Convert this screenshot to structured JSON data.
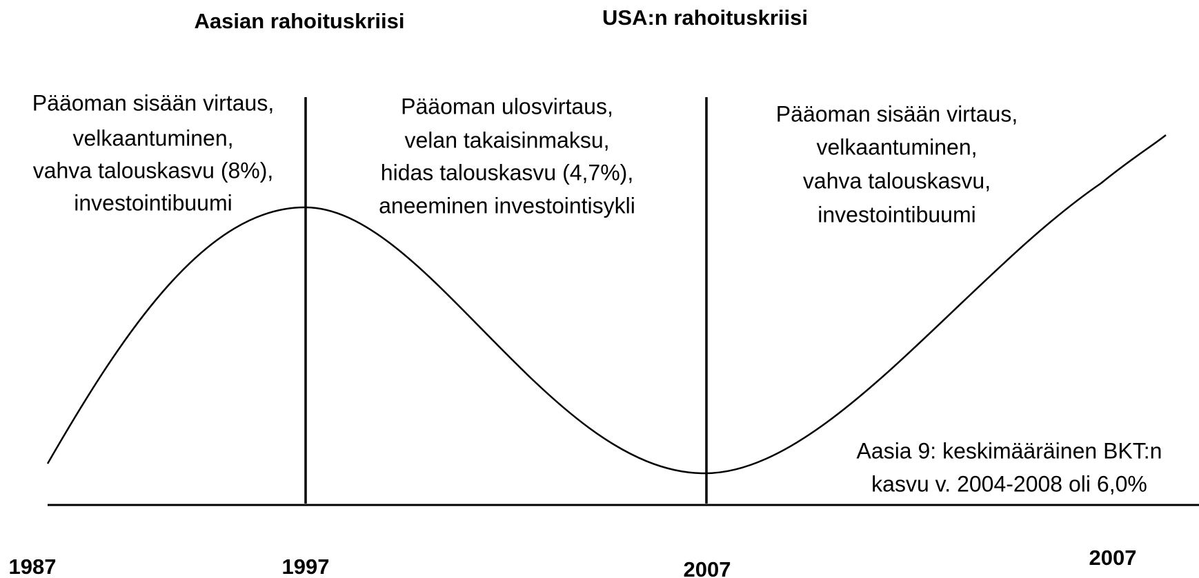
{
  "headings": [
    "Aasian rahoituskriisi",
    "USA:n rahoituskriisi"
  ],
  "phases": [
    {
      "lines": [
        "Pääoman sisään virtaus,",
        "velkaantuminen,",
        "vahva talouskasvu (8%),",
        "investointibuumi"
      ]
    },
    {
      "lines": [
        "Pääoman ulosvirtaus,",
        "velan takaisinmaksu,",
        "hidas talouskasvu (4,7%),",
        "aneeminen investointisykli"
      ]
    },
    {
      "lines": [
        "Pääoman sisään virtaus,",
        "velkaantuminen,",
        "vahva talouskasvu,",
        "investointibuumi"
      ]
    }
  ],
  "note": {
    "lines": [
      "Aasia 9: keskimääräinen BKT:n",
      "kasvu v. 2004-2008 oli 6,0%"
    ]
  },
  "years": [
    "1987",
    "1997",
    "2007",
    "2007"
  ]
}
